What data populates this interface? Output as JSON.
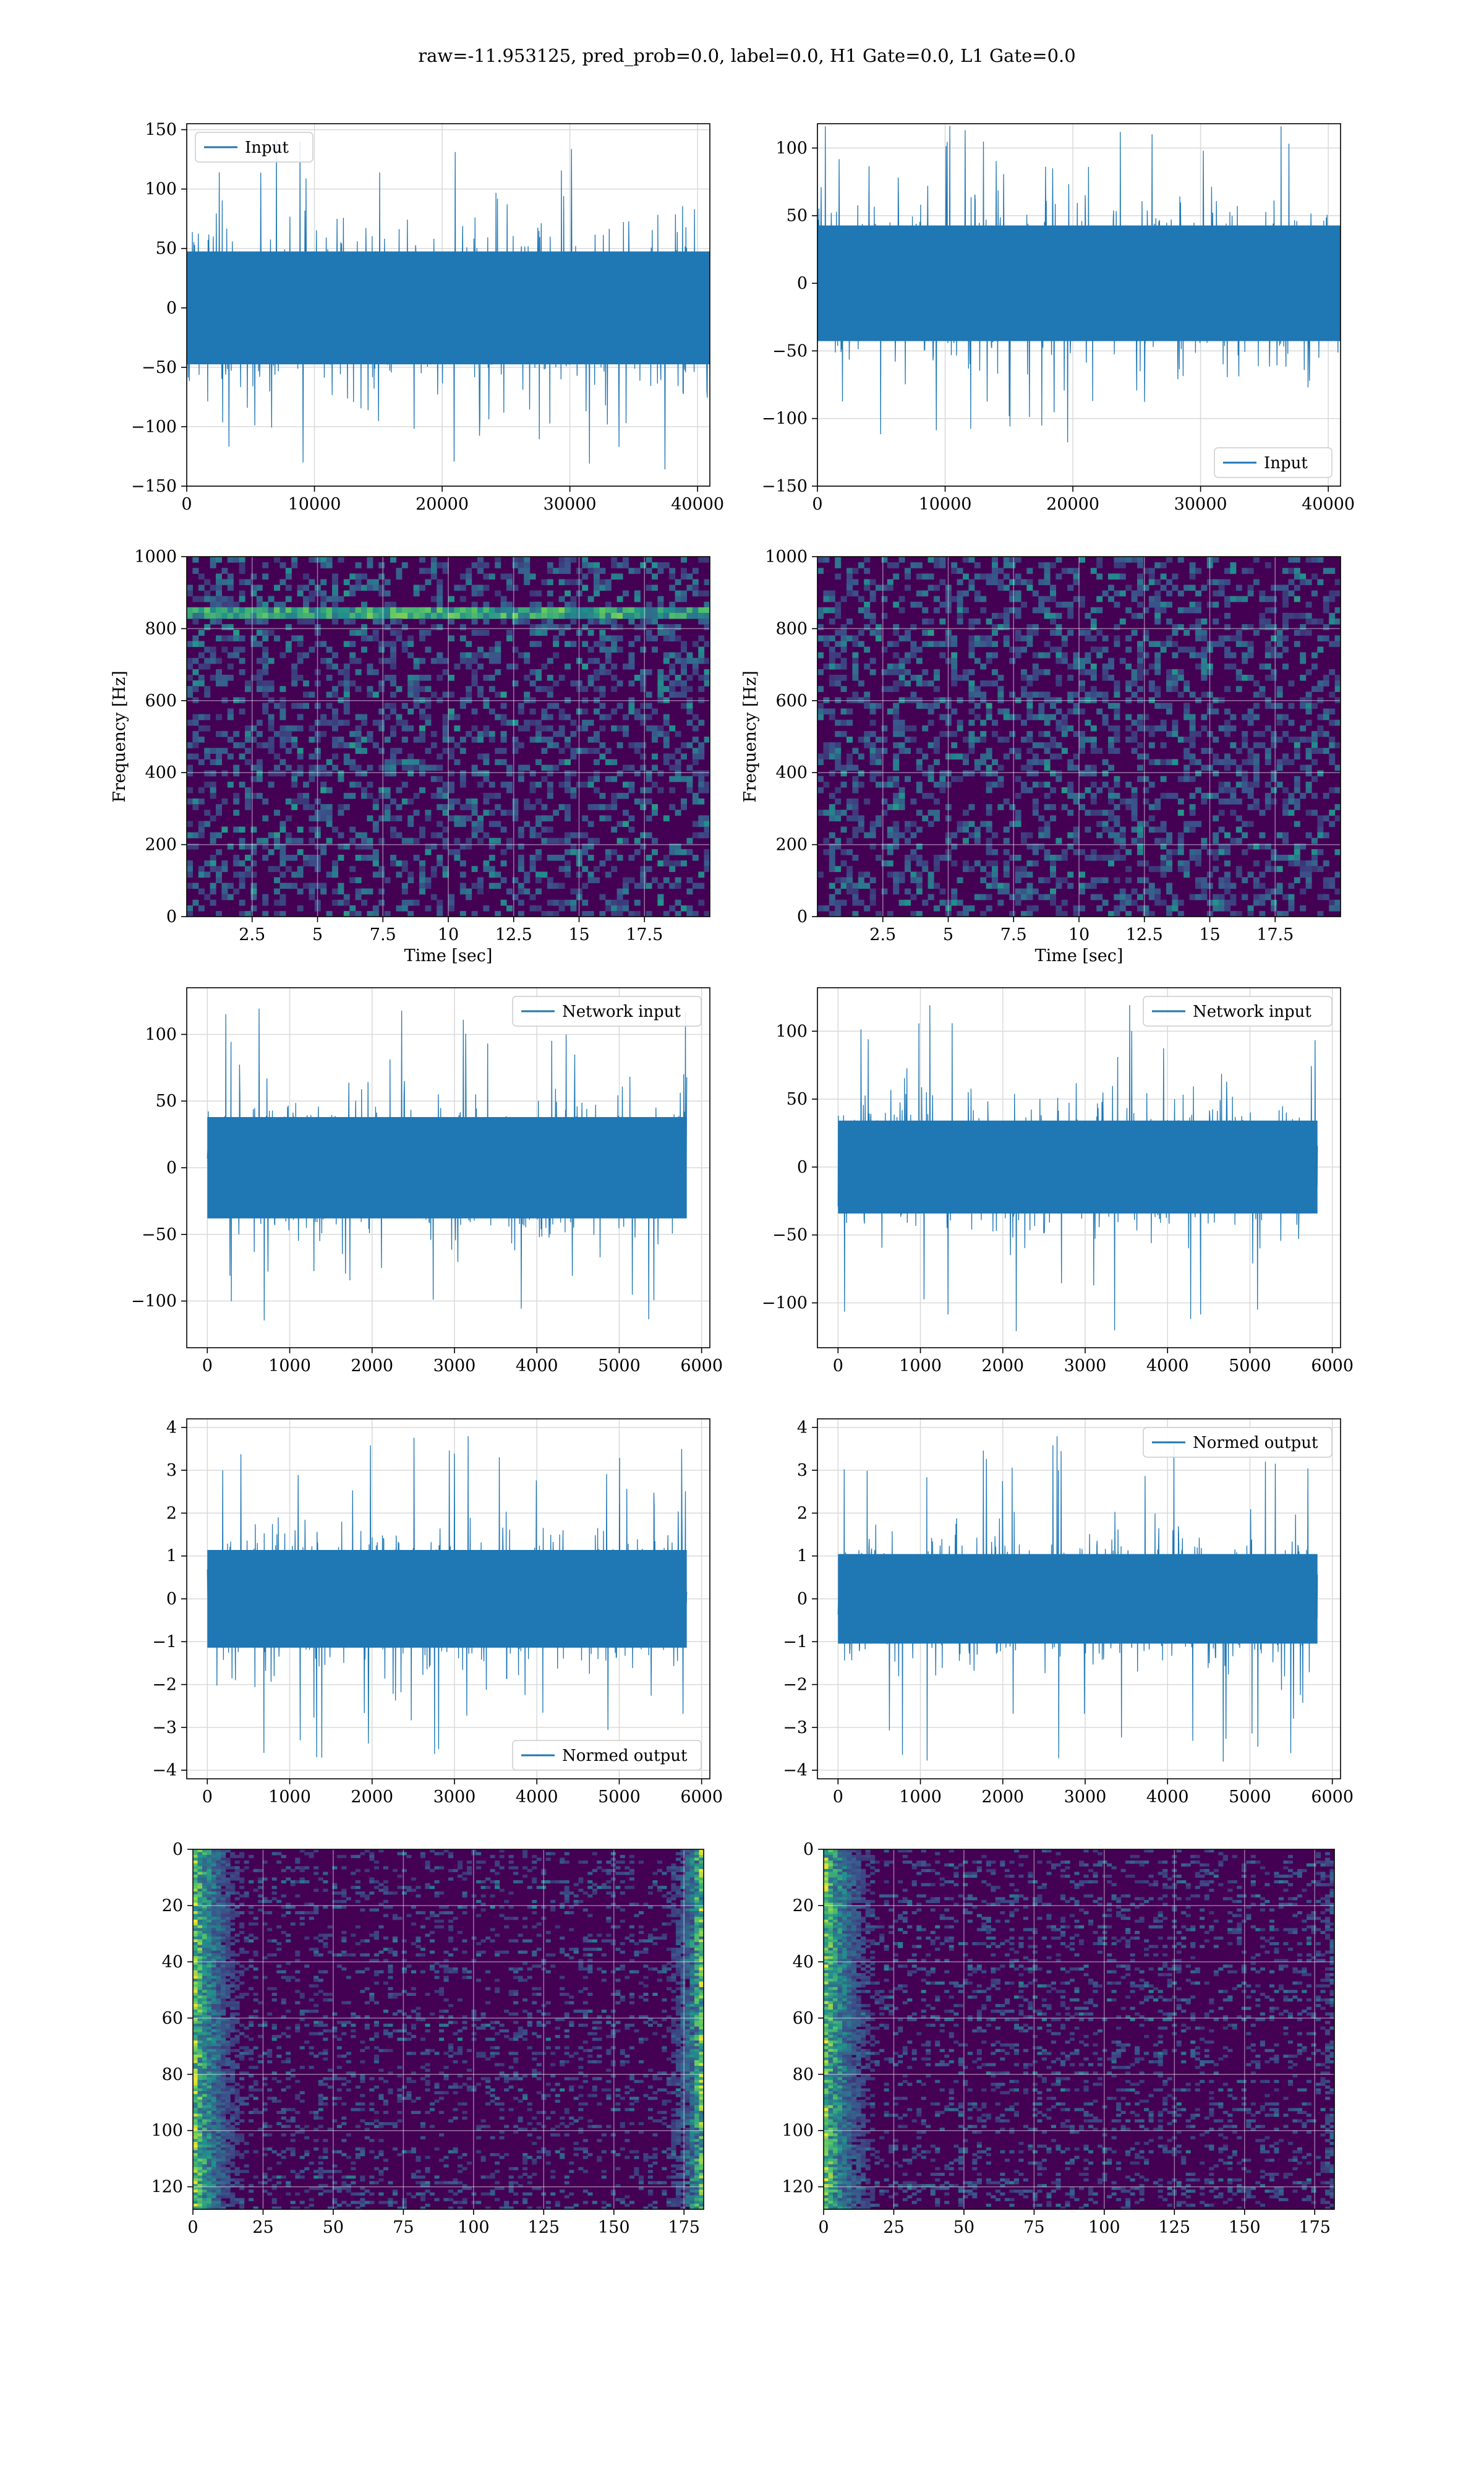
{
  "figure": {
    "title": "raw=-11.953125, pred_prob=0.0, label=0.0, H1 Gate=0.0, L1 Gate=0.0"
  },
  "colors": {
    "line": "#1f77b4",
    "grid": "#d9d9d9",
    "viridis_low": "#440154",
    "viridis_mid": "#21918c",
    "viridis_high": "#fde725"
  },
  "chart_data": [
    {
      "id": "p1",
      "type": "line",
      "series": [
        {
          "name": "Input",
          "n": 40960,
          "amplitude_typical": 50,
          "amplitude_peak": 142
        }
      ],
      "xlim": [
        0,
        40960
      ],
      "ylim": [
        -150,
        155
      ],
      "xticks": [
        0,
        10000,
        20000,
        30000,
        40000
      ],
      "yticks": [
        -150,
        -100,
        -50,
        0,
        50,
        100,
        150
      ],
      "legend": "top-left",
      "grid": true,
      "xlabel": "",
      "ylabel": ""
    },
    {
      "id": "p2",
      "type": "line",
      "series": [
        {
          "name": "Input",
          "n": 40960,
          "amplitude_typical": 45,
          "amplitude_peak": 118
        }
      ],
      "xlim": [
        0,
        40960
      ],
      "ylim": [
        -150,
        118
      ],
      "xticks": [
        0,
        10000,
        20000,
        30000,
        40000
      ],
      "yticks": [
        -150,
        -100,
        -50,
        0,
        50,
        100
      ],
      "legend": "bottom-right",
      "grid": true,
      "xlabel": "",
      "ylabel": ""
    },
    {
      "id": "p3",
      "type": "heatmap",
      "xlim": [
        0,
        20
      ],
      "ylim": [
        0,
        1000
      ],
      "xticks": [
        2.5,
        5.0,
        7.5,
        10.0,
        12.5,
        15.0,
        17.5
      ],
      "yticks": [
        0,
        200,
        400,
        600,
        800,
        1000
      ],
      "xlabel": "Time [sec]",
      "ylabel": "Frequency [Hz]",
      "grid": true,
      "bright_band_hz": 840
    },
    {
      "id": "p4",
      "type": "heatmap",
      "xlim": [
        0,
        20
      ],
      "ylim": [
        0,
        1000
      ],
      "xticks": [
        2.5,
        5.0,
        7.5,
        10.0,
        12.5,
        15.0,
        17.5
      ],
      "yticks": [
        0,
        200,
        400,
        600,
        800,
        1000
      ],
      "xlabel": "Time [sec]",
      "ylabel": "Frequency [Hz]",
      "grid": true
    },
    {
      "id": "p5",
      "type": "line",
      "series": [
        {
          "name": "Network input",
          "n": 5820,
          "amplitude_typical": 40,
          "amplitude_peak": 122
        }
      ],
      "xlim": [
        -250,
        6100
      ],
      "ylim": [
        -135,
        135
      ],
      "xticks": [
        0,
        1000,
        2000,
        3000,
        4000,
        5000,
        6000
      ],
      "yticks": [
        -100,
        -50,
        0,
        50,
        100
      ],
      "legend": "top-right",
      "grid": true,
      "xlabel": "",
      "ylabel": ""
    },
    {
      "id": "p6",
      "type": "line",
      "series": [
        {
          "name": "Network input",
          "n": 5820,
          "amplitude_typical": 36,
          "amplitude_peak": 122
        }
      ],
      "xlim": [
        -250,
        6100
      ],
      "ylim": [
        -133,
        132
      ],
      "xticks": [
        0,
        1000,
        2000,
        3000,
        4000,
        5000,
        6000
      ],
      "yticks": [
        -100,
        -50,
        0,
        50,
        100
      ],
      "legend": "top-right",
      "grid": true,
      "xlabel": "",
      "ylabel": ""
    },
    {
      "id": "p7",
      "type": "line",
      "series": [
        {
          "name": "Normed output",
          "n": 5820,
          "amplitude_typical": 1.2,
          "amplitude_peak": 3.8
        }
      ],
      "xlim": [
        -250,
        6100
      ],
      "ylim": [
        -4.2,
        4.2
      ],
      "xticks": [
        0,
        1000,
        2000,
        3000,
        4000,
        5000,
        6000
      ],
      "yticks": [
        -4,
        -3,
        -2,
        -1,
        0,
        1,
        2,
        3,
        4
      ],
      "legend": "bottom-right",
      "grid": true,
      "xlabel": "",
      "ylabel": ""
    },
    {
      "id": "p8",
      "type": "line",
      "series": [
        {
          "name": "Normed output",
          "n": 5820,
          "amplitude_typical": 1.1,
          "amplitude_peak": 3.8
        }
      ],
      "xlim": [
        -250,
        6100
      ],
      "ylim": [
        -4.2,
        4.2
      ],
      "xticks": [
        0,
        1000,
        2000,
        3000,
        4000,
        5000,
        6000
      ],
      "yticks": [
        -4,
        -3,
        -2,
        -1,
        0,
        1,
        2,
        3,
        4
      ],
      "legend": "top-right",
      "grid": true,
      "xlabel": "",
      "ylabel": ""
    },
    {
      "id": "p9",
      "type": "heatmap",
      "xlim": [
        0,
        182
      ],
      "ylim": [
        128,
        0
      ],
      "xticks": [
        0,
        25,
        50,
        75,
        100,
        125,
        150,
        175
      ],
      "yticks": [
        0,
        20,
        40,
        60,
        80,
        100,
        120
      ],
      "grid": true,
      "xlabel": "",
      "ylabel": ""
    },
    {
      "id": "p10",
      "type": "heatmap",
      "xlim": [
        0,
        182
      ],
      "ylim": [
        128,
        0
      ],
      "xticks": [
        0,
        25,
        50,
        75,
        100,
        125,
        150,
        175
      ],
      "yticks": [
        0,
        20,
        40,
        60,
        80,
        100,
        120
      ],
      "grid": true,
      "xlabel": "",
      "ylabel": ""
    }
  ]
}
